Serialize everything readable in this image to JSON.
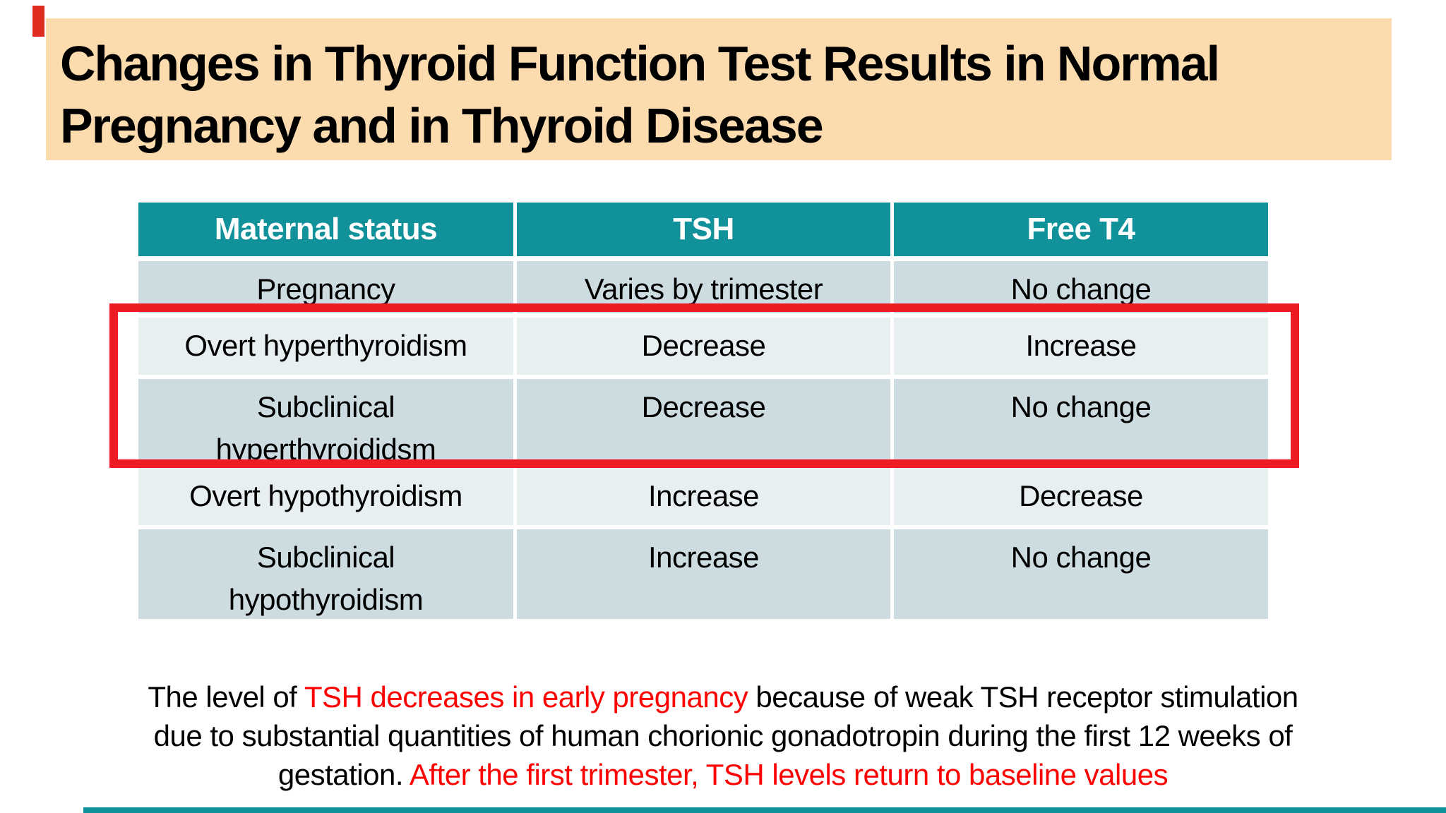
{
  "colors": {
    "title_bg": "#fcdbae",
    "header_teal": "#11929b",
    "row_dark": "#ccdce1",
    "row_light": "#e7eff1",
    "highlight_red": "#ed1c24",
    "footer_red": "#fe0000",
    "accent_red": "#e02b20",
    "bottom_strip_teal": "#11929b"
  },
  "title": {
    "line1": "Changes in Thyroid Function Test Results in Normal",
    "line2": "Pregnancy and in Thyroid Disease"
  },
  "table": {
    "header": {
      "columns": [
        "Maternal status",
        "TSH",
        "Free T4"
      ]
    },
    "rows": [
      {
        "cells": [
          "Pregnancy",
          "Varies by trimester",
          "No change"
        ]
      },
      {
        "cells": [
          "Overt hyperthyroidism",
          "Decrease",
          "Increase"
        ]
      },
      {
        "cells": [
          "Subclinical\nhyperthyroididsm",
          "Decrease",
          "No change"
        ]
      },
      {
        "cells": [
          "Overt hypothyroidism",
          "Increase",
          "Decrease"
        ]
      },
      {
        "cells": [
          "Subclinical\nhypothyroidism",
          "Increase",
          "No change"
        ]
      }
    ]
  },
  "footer": {
    "lines": [
      {
        "segments": [
          {
            "text": "The level of "
          },
          {
            "text": "TSH decreases in early pregnancy"
          },
          {
            "text": " because of weak TSH receptor stimulation"
          }
        ]
      },
      {
        "segments": [
          {
            "text": "due to substantial quantities of human chorionic gonadotropin during the first 12 weeks of"
          }
        ]
      },
      {
        "segments": [
          {
            "text": "gestation. "
          },
          {
            "text": "After the first trimester, TSH levels return to baseline values"
          }
        ]
      }
    ]
  }
}
